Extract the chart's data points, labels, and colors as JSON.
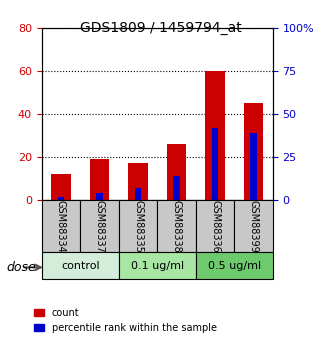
{
  "title": "GDS1809 / 1459794_at",
  "samples": [
    "GSM88334",
    "GSM88337",
    "GSM88335",
    "GSM88338",
    "GSM88336",
    "GSM88399"
  ],
  "count_values": [
    12,
    19,
    17,
    26,
    60,
    45
  ],
  "percentile_values": [
    2,
    4,
    7,
    14,
    42,
    39
  ],
  "groups": [
    {
      "label": "control",
      "start": 0,
      "end": 2,
      "color": "#d4edda"
    },
    {
      "label": "0.1 ug/ml",
      "start": 2,
      "end": 4,
      "color": "#a8e6a3"
    },
    {
      "label": "0.5 ug/ml",
      "start": 4,
      "end": 6,
      "color": "#6dca6d"
    }
  ],
  "bar_width": 0.5,
  "ylim_left": [
    0,
    80
  ],
  "ylim_right": [
    0,
    100
  ],
  "yticks_left": [
    0,
    20,
    40,
    60,
    80
  ],
  "yticks_right": [
    0,
    25,
    50,
    75,
    100
  ],
  "ylabel_left_color": "#cc0000",
  "ylabel_right_color": "#0000cc",
  "count_color": "#cc0000",
  "percentile_color": "#0000cc",
  "bg_color": "#ffffff",
  "sample_bg_color": "#c8c8c8",
  "legend_count": "count",
  "legend_percentile": "percentile rank within the sample",
  "dose_label": "dose"
}
